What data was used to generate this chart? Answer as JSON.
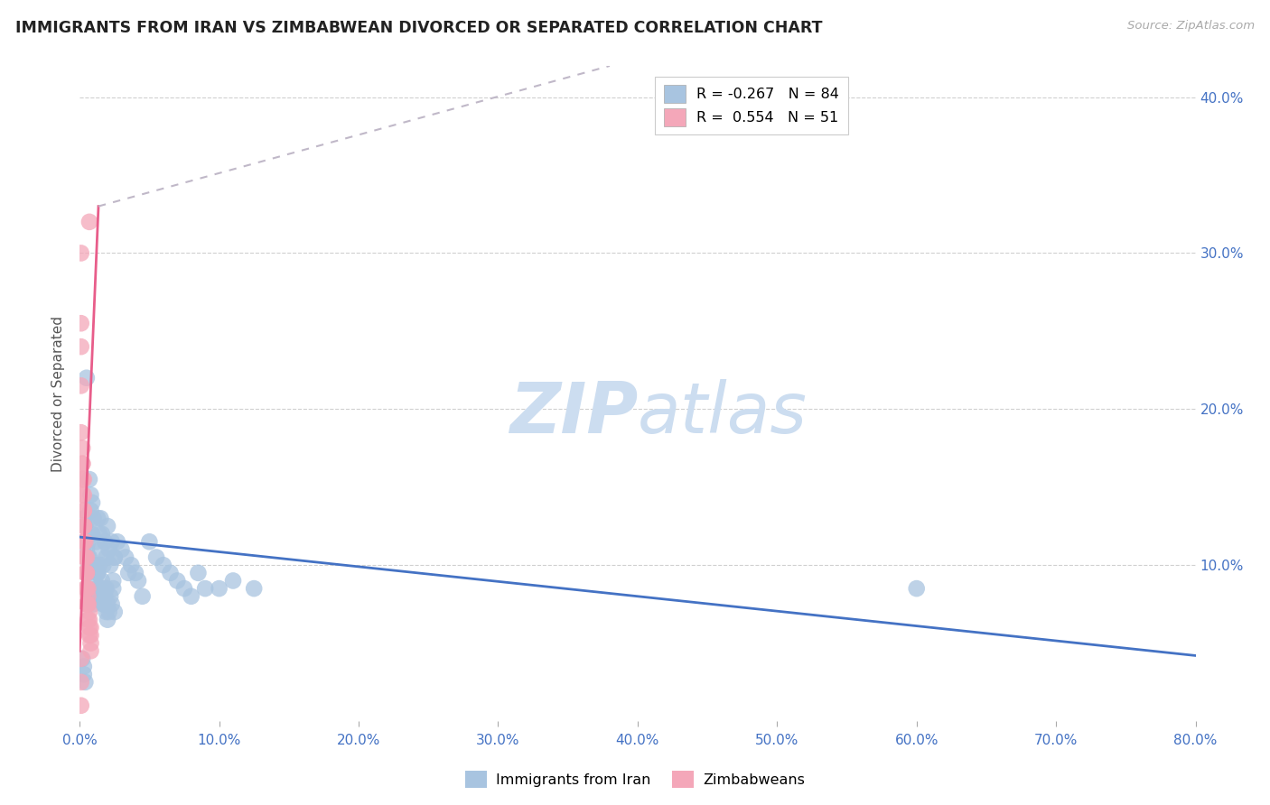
{
  "title": "IMMIGRANTS FROM IRAN VS ZIMBABWEAN DIVORCED OR SEPARATED CORRELATION CHART",
  "source": "Source: ZipAtlas.com",
  "ylabel": "Divorced or Separated",
  "x_lim": [
    0.0,
    0.8
  ],
  "y_lim": [
    0.0,
    0.42
  ],
  "watermark_zip": "ZIP",
  "watermark_atlas": "atlas",
  "watermark_color_zip": "#c8d8ee",
  "watermark_color_atlas": "#c8d8ee",
  "blue_scatter": [
    [
      0.004,
      0.115
    ],
    [
      0.006,
      0.105
    ],
    [
      0.008,
      0.135
    ],
    [
      0.009,
      0.12
    ],
    [
      0.01,
      0.13
    ],
    [
      0.011,
      0.1
    ],
    [
      0.012,
      0.115
    ],
    [
      0.013,
      0.095
    ],
    [
      0.015,
      0.13
    ],
    [
      0.016,
      0.12
    ],
    [
      0.017,
      0.1
    ],
    [
      0.018,
      0.115
    ],
    [
      0.019,
      0.105
    ],
    [
      0.02,
      0.125
    ],
    [
      0.021,
      0.11
    ],
    [
      0.022,
      0.1
    ],
    [
      0.023,
      0.115
    ],
    [
      0.024,
      0.09
    ],
    [
      0.025,
      0.105
    ],
    [
      0.027,
      0.115
    ],
    [
      0.005,
      0.22
    ],
    [
      0.006,
      0.095
    ],
    [
      0.007,
      0.155
    ],
    [
      0.008,
      0.145
    ],
    [
      0.009,
      0.14
    ],
    [
      0.01,
      0.08
    ],
    [
      0.011,
      0.1
    ],
    [
      0.012,
      0.08
    ],
    [
      0.013,
      0.13
    ],
    [
      0.014,
      0.12
    ],
    [
      0.015,
      0.11
    ],
    [
      0.016,
      0.08
    ],
    [
      0.017,
      0.075
    ],
    [
      0.018,
      0.085
    ],
    [
      0.019,
      0.07
    ],
    [
      0.02,
      0.065
    ],
    [
      0.022,
      0.08
    ],
    [
      0.023,
      0.075
    ],
    [
      0.024,
      0.085
    ],
    [
      0.025,
      0.07
    ],
    [
      0.003,
      0.13
    ],
    [
      0.004,
      0.125
    ],
    [
      0.005,
      0.11
    ],
    [
      0.006,
      0.115
    ],
    [
      0.007,
      0.105
    ],
    [
      0.008,
      0.12
    ],
    [
      0.009,
      0.08
    ],
    [
      0.01,
      0.075
    ],
    [
      0.011,
      0.09
    ],
    [
      0.012,
      0.085
    ],
    [
      0.013,
      0.095
    ],
    [
      0.014,
      0.1
    ],
    [
      0.015,
      0.085
    ],
    [
      0.016,
      0.09
    ],
    [
      0.017,
      0.075
    ],
    [
      0.018,
      0.08
    ],
    [
      0.019,
      0.085
    ],
    [
      0.02,
      0.075
    ],
    [
      0.021,
      0.07
    ],
    [
      0.025,
      0.105
    ],
    [
      0.03,
      0.11
    ],
    [
      0.033,
      0.105
    ],
    [
      0.035,
      0.095
    ],
    [
      0.037,
      0.1
    ],
    [
      0.04,
      0.095
    ],
    [
      0.042,
      0.09
    ],
    [
      0.045,
      0.08
    ],
    [
      0.05,
      0.115
    ],
    [
      0.055,
      0.105
    ],
    [
      0.06,
      0.1
    ],
    [
      0.065,
      0.095
    ],
    [
      0.07,
      0.09
    ],
    [
      0.075,
      0.085
    ],
    [
      0.08,
      0.08
    ],
    [
      0.085,
      0.095
    ],
    [
      0.09,
      0.085
    ],
    [
      0.1,
      0.085
    ],
    [
      0.11,
      0.09
    ],
    [
      0.125,
      0.085
    ],
    [
      0.6,
      0.085
    ],
    [
      0.002,
      0.04
    ],
    [
      0.003,
      0.035
    ],
    [
      0.003,
      0.03
    ],
    [
      0.004,
      0.025
    ]
  ],
  "pink_scatter": [
    [
      0.001,
      0.255
    ],
    [
      0.001,
      0.215
    ],
    [
      0.001,
      0.185
    ],
    [
      0.002,
      0.175
    ],
    [
      0.002,
      0.165
    ],
    [
      0.002,
      0.155
    ],
    [
      0.002,
      0.165
    ],
    [
      0.002,
      0.155
    ],
    [
      0.002,
      0.145
    ],
    [
      0.003,
      0.155
    ],
    [
      0.003,
      0.145
    ],
    [
      0.003,
      0.135
    ],
    [
      0.003,
      0.125
    ],
    [
      0.003,
      0.135
    ],
    [
      0.003,
      0.125
    ],
    [
      0.003,
      0.115
    ],
    [
      0.003,
      0.125
    ],
    [
      0.003,
      0.115
    ],
    [
      0.003,
      0.105
    ],
    [
      0.004,
      0.115
    ],
    [
      0.004,
      0.105
    ],
    [
      0.004,
      0.095
    ],
    [
      0.004,
      0.105
    ],
    [
      0.004,
      0.095
    ],
    [
      0.004,
      0.085
    ],
    [
      0.005,
      0.095
    ],
    [
      0.005,
      0.085
    ],
    [
      0.005,
      0.075
    ],
    [
      0.005,
      0.085
    ],
    [
      0.005,
      0.075
    ],
    [
      0.005,
      0.105
    ],
    [
      0.005,
      0.095
    ],
    [
      0.006,
      0.085
    ],
    [
      0.006,
      0.075
    ],
    [
      0.006,
      0.08
    ],
    [
      0.006,
      0.075
    ],
    [
      0.006,
      0.065
    ],
    [
      0.007,
      0.07
    ],
    [
      0.007,
      0.06
    ],
    [
      0.007,
      0.065
    ],
    [
      0.007,
      0.055
    ],
    [
      0.008,
      0.06
    ],
    [
      0.008,
      0.05
    ],
    [
      0.008,
      0.055
    ],
    [
      0.008,
      0.045
    ],
    [
      0.001,
      0.3
    ],
    [
      0.001,
      0.24
    ],
    [
      0.001,
      0.04
    ],
    [
      0.001,
      0.025
    ],
    [
      0.001,
      0.01
    ],
    [
      0.007,
      0.32
    ]
  ],
  "blue_line": {
    "x": [
      0.0,
      0.8
    ],
    "y": [
      0.118,
      0.042
    ]
  },
  "pink_line_solid": {
    "x": [
      0.0,
      0.0135
    ],
    "y": [
      0.045,
      0.33
    ]
  },
  "pink_line_dashed": {
    "x": [
      0.0135,
      0.38
    ],
    "y": [
      0.33,
      0.42
    ]
  },
  "blue_line_color": "#4472c4",
  "pink_line_color": "#e85d8a",
  "pink_dashed_color": "#c0b8c8",
  "scatter_blue_color": "#a8c4e0",
  "scatter_pink_color": "#f4a7b9",
  "grid_color": "#d0d0d0",
  "bg_color": "#ffffff",
  "legend_top": [
    {
      "label": "R = -0.267   N = 84",
      "color": "#a8c4e0"
    },
    {
      "label": "R =  0.554   N = 51",
      "color": "#f4a7b9"
    }
  ],
  "legend_bottom": [
    {
      "label": "Immigrants from Iran",
      "color": "#a8c4e0"
    },
    {
      "label": "Zimbabweans",
      "color": "#f4a7b9"
    }
  ]
}
